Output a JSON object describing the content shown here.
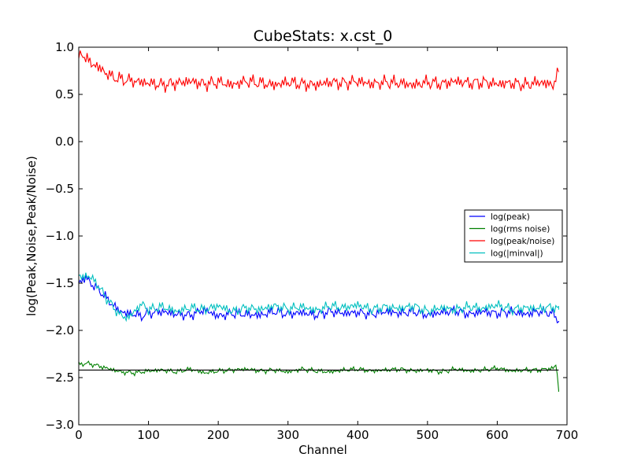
{
  "chart_data": {
    "type": "line",
    "title": "CubeStats: x.cst_0",
    "xlabel": "Channel",
    "ylabel": "log(Peak,Noise,Peak/Noise)",
    "xlim": [
      0,
      700
    ],
    "ylim": [
      -3.0,
      1.0
    ],
    "xticks": [
      0,
      100,
      200,
      300,
      400,
      500,
      600,
      700
    ],
    "xtick_labels": [
      "0",
      "100",
      "200",
      "300",
      "400",
      "500",
      "600",
      "700"
    ],
    "yticks": [
      -3.0,
      -2.5,
      -2.0,
      -1.5,
      -1.0,
      -0.5,
      0.0,
      0.5,
      1.0
    ],
    "ytick_labels": [
      "−3.0",
      "−2.5",
      "−2.0",
      "−1.5",
      "−1.0",
      "−0.5",
      "0.0",
      "0.5",
      "1.0"
    ],
    "grid": false,
    "legend_position": "center-right",
    "reference_line": {
      "y": -2.42,
      "color": "#000000"
    },
    "series": [
      {
        "name": "log(peak)",
        "color": "#0000ff",
        "x": [
          0,
          10,
          20,
          30,
          40,
          50,
          60,
          70,
          80,
          90,
          100,
          120,
          140,
          160,
          180,
          200,
          220,
          240,
          260,
          280,
          300,
          320,
          340,
          360,
          380,
          400,
          420,
          440,
          460,
          480,
          500,
          520,
          540,
          560,
          580,
          600,
          620,
          640,
          660,
          680,
          688
        ],
        "y": [
          -1.5,
          -1.44,
          -1.52,
          -1.58,
          -1.66,
          -1.74,
          -1.8,
          -1.82,
          -1.83,
          -1.85,
          -1.82,
          -1.8,
          -1.83,
          -1.84,
          -1.78,
          -1.85,
          -1.82,
          -1.83,
          -1.84,
          -1.8,
          -1.83,
          -1.81,
          -1.84,
          -1.8,
          -1.82,
          -1.81,
          -1.83,
          -1.8,
          -1.82,
          -1.8,
          -1.84,
          -1.81,
          -1.79,
          -1.83,
          -1.8,
          -1.82,
          -1.8,
          -1.83,
          -1.8,
          -1.82,
          -1.9
        ]
      },
      {
        "name": "log(rms noise)",
        "color": "#008000",
        "x": [
          0,
          10,
          20,
          30,
          40,
          50,
          60,
          80,
          100,
          120,
          140,
          160,
          180,
          200,
          220,
          240,
          260,
          280,
          300,
          320,
          340,
          360,
          380,
          400,
          420,
          440,
          460,
          480,
          500,
          520,
          540,
          560,
          580,
          600,
          620,
          640,
          660,
          680,
          685,
          688
        ],
        "y": [
          -2.36,
          -2.35,
          -2.36,
          -2.38,
          -2.4,
          -2.42,
          -2.44,
          -2.45,
          -2.43,
          -2.42,
          -2.44,
          -2.41,
          -2.45,
          -2.43,
          -2.42,
          -2.41,
          -2.43,
          -2.42,
          -2.44,
          -2.41,
          -2.43,
          -2.44,
          -2.42,
          -2.41,
          -2.43,
          -2.42,
          -2.41,
          -2.43,
          -2.42,
          -2.44,
          -2.41,
          -2.43,
          -2.42,
          -2.4,
          -2.43,
          -2.42,
          -2.42,
          -2.4,
          -2.36,
          -2.65
        ]
      },
      {
        "name": "log(peak/noise)",
        "color": "#ff0000",
        "x": [
          0,
          5,
          10,
          20,
          30,
          40,
          50,
          60,
          80,
          100,
          120,
          140,
          160,
          180,
          200,
          220,
          240,
          260,
          280,
          300,
          320,
          340,
          360,
          380,
          400,
          420,
          440,
          460,
          480,
          500,
          520,
          540,
          560,
          580,
          600,
          620,
          640,
          660,
          680,
          688
        ],
        "y": [
          0.87,
          0.95,
          0.88,
          0.82,
          0.78,
          0.72,
          0.68,
          0.66,
          0.64,
          0.62,
          0.6,
          0.62,
          0.64,
          0.61,
          0.63,
          0.6,
          0.64,
          0.62,
          0.6,
          0.63,
          0.61,
          0.6,
          0.63,
          0.62,
          0.64,
          0.61,
          0.63,
          0.62,
          0.6,
          0.63,
          0.61,
          0.64,
          0.62,
          0.63,
          0.61,
          0.62,
          0.6,
          0.63,
          0.6,
          0.74
        ]
      },
      {
        "name": "log(|minval|)",
        "color": "#00bfbf",
        "x": [
          0,
          10,
          20,
          30,
          40,
          50,
          60,
          70,
          80,
          90,
          100,
          120,
          140,
          160,
          180,
          200,
          220,
          240,
          260,
          280,
          300,
          320,
          340,
          360,
          380,
          400,
          420,
          440,
          460,
          480,
          500,
          520,
          540,
          560,
          580,
          600,
          620,
          640,
          660,
          680,
          688
        ],
        "y": [
          -1.44,
          -1.42,
          -1.45,
          -1.55,
          -1.66,
          -1.76,
          -1.84,
          -1.87,
          -1.8,
          -1.72,
          -1.78,
          -1.75,
          -1.8,
          -1.76,
          -1.78,
          -1.74,
          -1.8,
          -1.76,
          -1.78,
          -1.74,
          -1.77,
          -1.75,
          -1.79,
          -1.74,
          -1.76,
          -1.73,
          -1.78,
          -1.75,
          -1.77,
          -1.74,
          -1.8,
          -1.76,
          -1.78,
          -1.75,
          -1.77,
          -1.73,
          -1.78,
          -1.76,
          -1.77,
          -1.75,
          -1.78
        ]
      }
    ]
  }
}
